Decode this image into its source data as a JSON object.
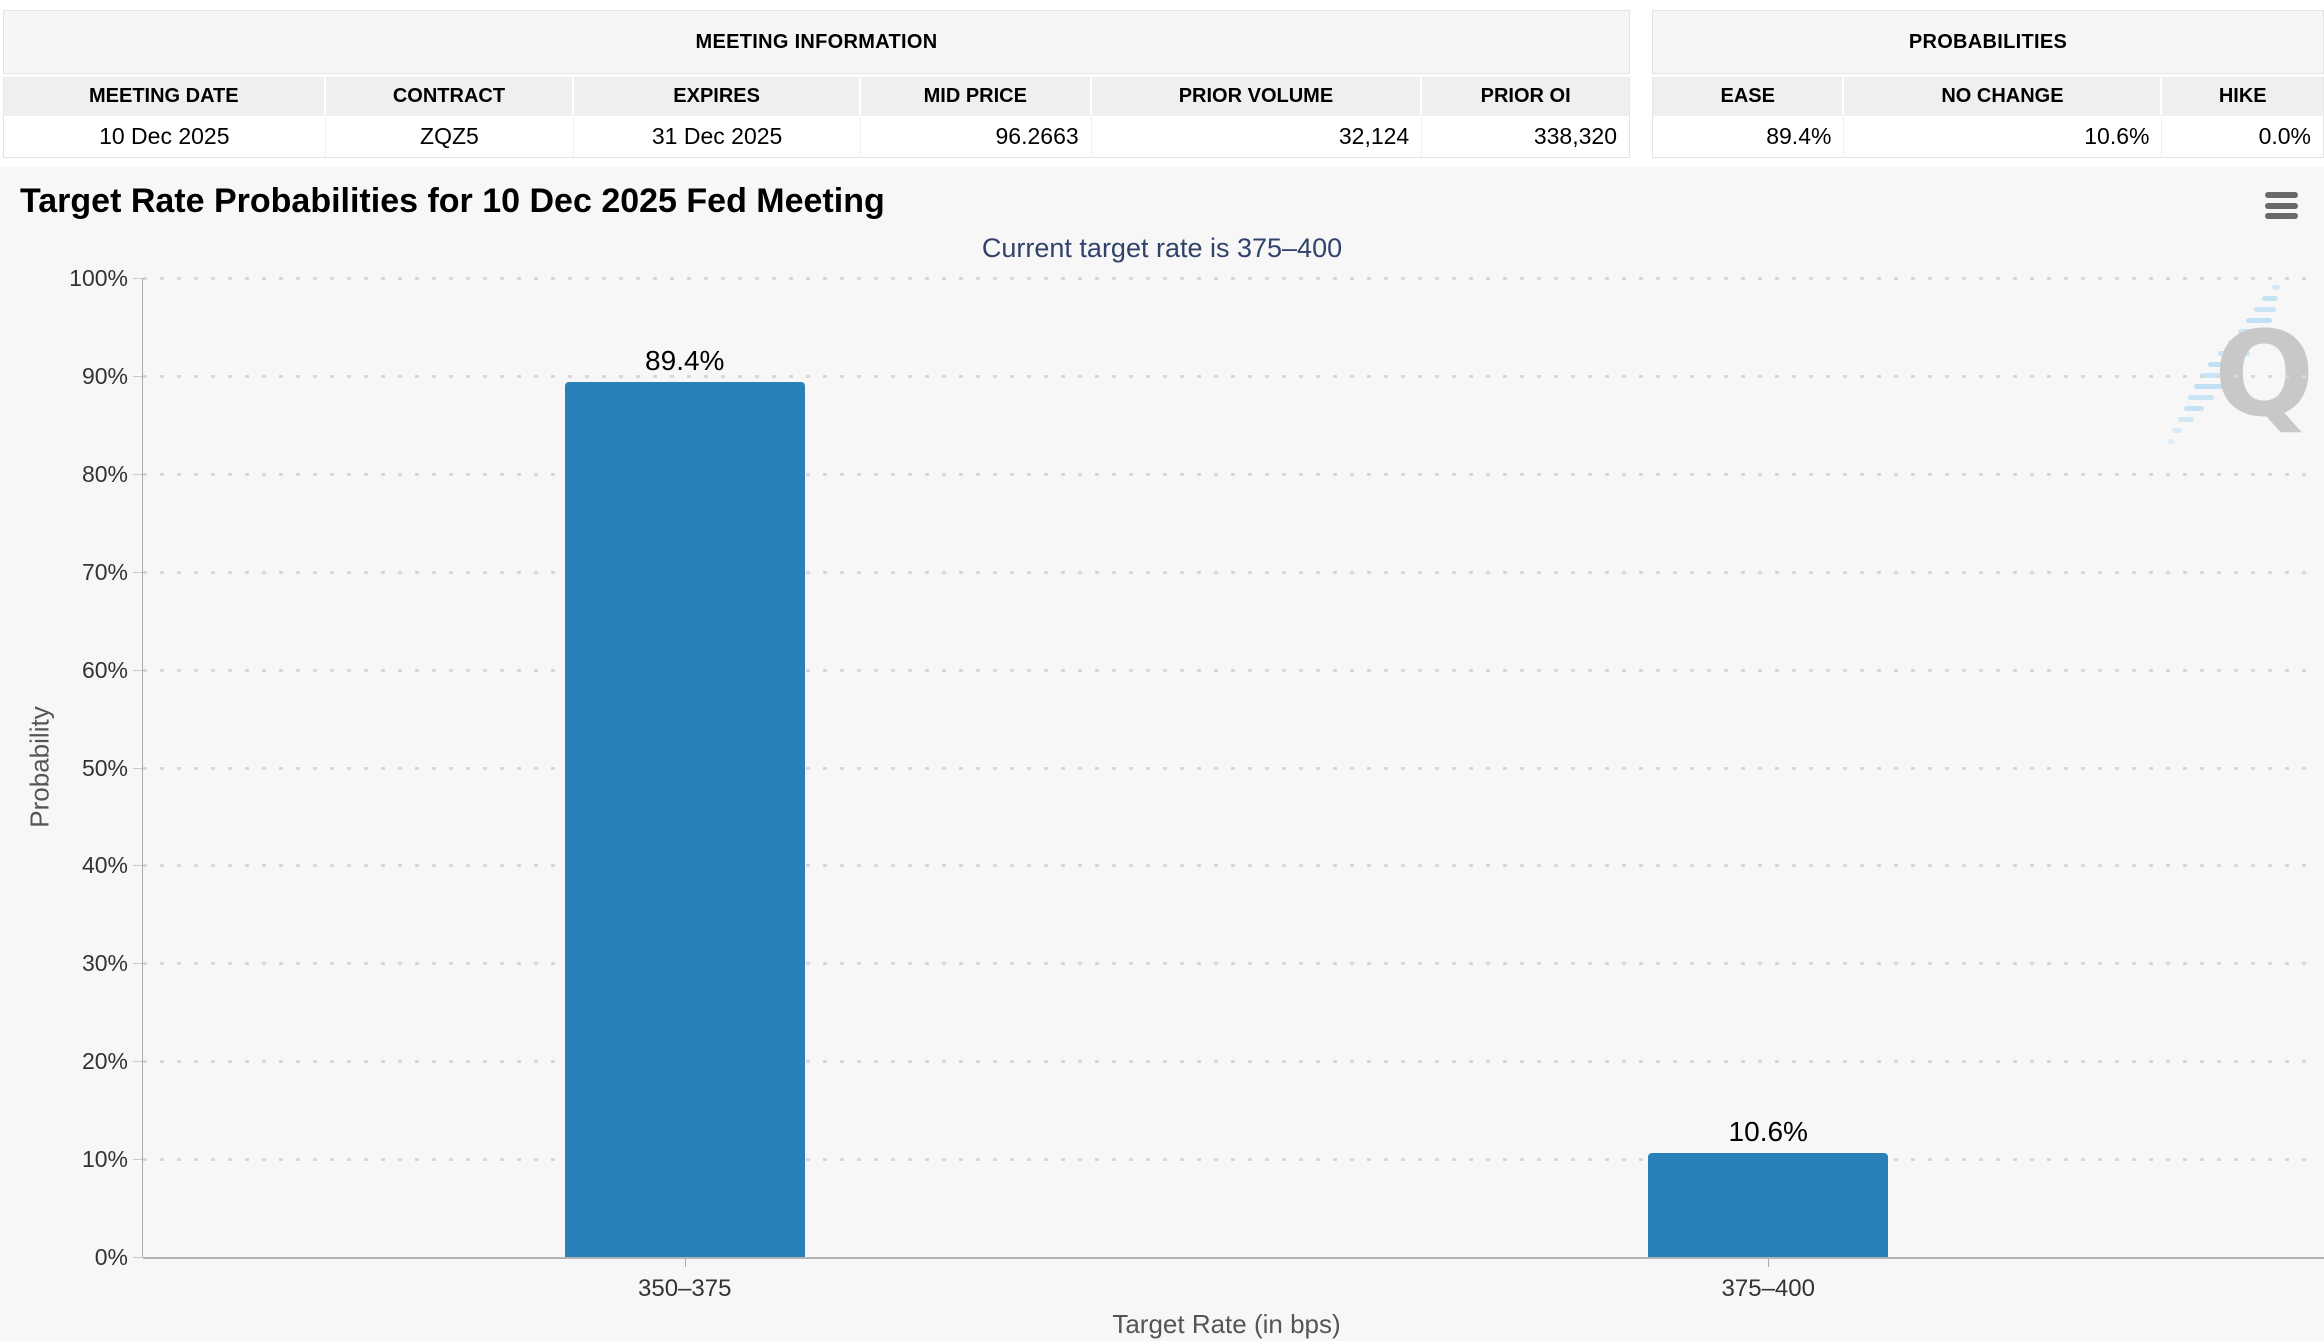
{
  "meeting_information": {
    "title": "MEETING INFORMATION",
    "columns": [
      "MEETING DATE",
      "CONTRACT",
      "EXPIRES",
      "MID PRICE",
      "PRIOR VOLUME",
      "PRIOR OI"
    ],
    "values": [
      "10 Dec 2025",
      "ZQZ5",
      "31 Dec 2025",
      "96.2663",
      "32,124",
      "338,320"
    ]
  },
  "probabilities": {
    "title": "PROBABILITIES",
    "columns": [
      "EASE",
      "NO CHANGE",
      "HIKE"
    ],
    "values": [
      "89.4%",
      "10.6%",
      "0.0%"
    ]
  },
  "chart_data": {
    "type": "bar",
    "title": "Target Rate Probabilities for 10 Dec 2025 Fed Meeting",
    "subtitle": "Current target rate is 375–400",
    "categories": [
      "350–375",
      "375–400"
    ],
    "values": [
      89.4,
      10.6
    ],
    "value_labels": [
      "89.4%",
      "10.6%"
    ],
    "xlabel": "Target Rate (in bps)",
    "ylabel": "Probability",
    "ylim": [
      0,
      100
    ],
    "ytick_step": 10,
    "ytick_labels": [
      "0%",
      "10%",
      "20%",
      "30%",
      "40%",
      "50%",
      "60%",
      "70%",
      "80%",
      "90%",
      "100%"
    ],
    "grid": "horizontal-dotted",
    "legend": "none",
    "bar_color": "#2a80b8"
  },
  "watermark": {
    "letter": "Q"
  }
}
